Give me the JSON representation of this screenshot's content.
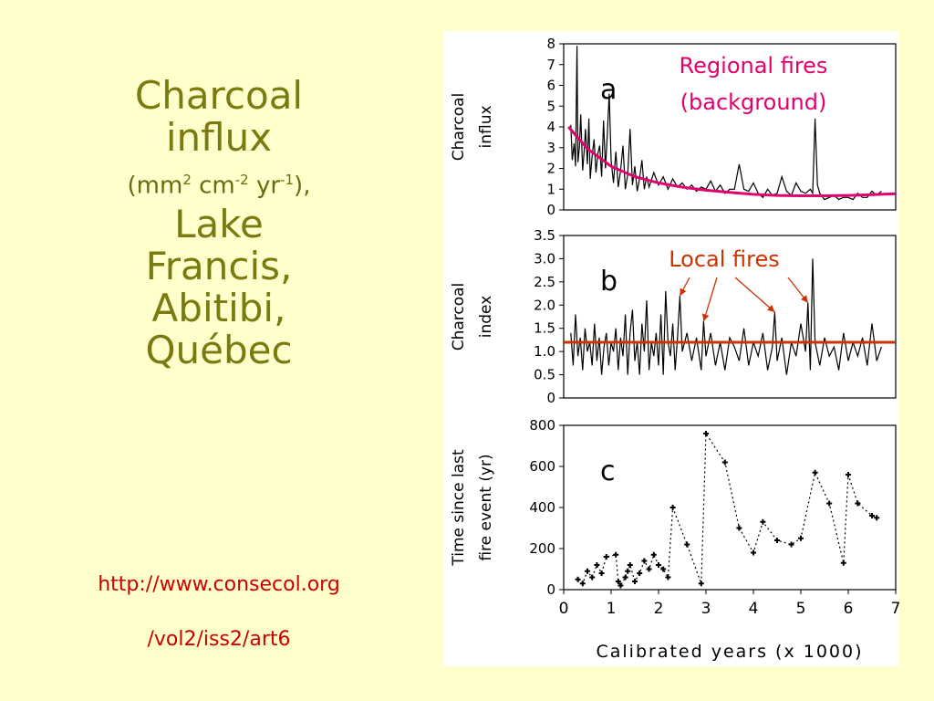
{
  "slide": {
    "title_line1": "Charcoal",
    "title_line2": "influx",
    "units_pre": "(mm",
    "units_sup1": "2",
    "units_mid1": " cm",
    "units_sup2": "-2",
    "units_mid2": " yr",
    "units_sup3": "-1",
    "units_post": "),",
    "place_line1": "Lake",
    "place_line2": "Francis,",
    "place_line3": "Abitibi,",
    "place_line4": "Québec",
    "link_line1": "http://www.consecol.org",
    "link_line2": "/vol2/iss2/art6"
  },
  "chart_data": [
    {
      "type": "line",
      "panel_letter": "a",
      "ylabel_line1": "Charcoal",
      "ylabel_line2": "influx",
      "annotation_line1": "Regional fires",
      "annotation_line2": "(background)",
      "ylim": [
        0,
        8
      ],
      "xlim": [
        0,
        7
      ],
      "yticks": [
        "0",
        "1",
        "2",
        "3",
        "4",
        "5",
        "6",
        "7",
        "8"
      ],
      "background_color": "#e0006e",
      "series": [
        {
          "x": [
            0.15,
            0.18,
            0.22,
            0.25,
            0.28,
            0.3,
            0.33,
            0.36,
            0.4,
            0.43,
            0.46,
            0.5,
            0.53,
            0.56,
            0.6,
            0.64,
            0.68,
            0.72,
            0.76,
            0.8,
            0.84,
            0.88,
            0.92,
            0.96,
            1.0,
            1.05,
            1.1,
            1.15,
            1.2,
            1.25,
            1.3,
            1.35,
            1.4,
            1.45,
            1.5,
            1.55,
            1.6,
            1.65,
            1.7,
            1.75,
            1.8,
            1.9,
            2.0,
            2.1,
            2.2,
            2.3,
            2.4,
            2.5,
            2.6,
            2.7,
            2.8,
            2.9,
            3.0,
            3.1,
            3.2,
            3.3,
            3.4,
            3.5,
            3.6,
            3.7,
            3.8,
            3.9,
            4.0,
            4.1,
            4.2,
            4.3,
            4.4,
            4.5,
            4.6,
            4.7,
            4.8,
            4.9,
            5.0,
            5.1,
            5.2,
            5.25,
            5.3,
            5.35,
            5.4,
            5.5,
            5.6,
            5.7,
            5.8,
            5.9,
            6.0,
            6.1,
            6.2,
            6.3,
            6.4,
            6.5,
            6.6,
            6.7
          ],
          "y": [
            4.1,
            2.4,
            3.2,
            2.1,
            7.9,
            2.3,
            3.0,
            4.6,
            1.9,
            2.8,
            3.9,
            2.2,
            4.4,
            1.5,
            2.6,
            3.4,
            1.8,
            2.7,
            3.1,
            1.6,
            4.3,
            2.0,
            3.6,
            5.6,
            2.4,
            1.3,
            2.8,
            1.1,
            1.9,
            3.1,
            1.0,
            1.7,
            3.9,
            1.2,
            2.1,
            0.9,
            1.5,
            2.4,
            1.0,
            1.6,
            1.1,
            1.8,
            1.2,
            1.6,
            1.0,
            1.5,
            1.1,
            1.3,
            1.0,
            1.2,
            0.9,
            1.1,
            1.0,
            1.4,
            0.9,
            1.2,
            0.8,
            1.0,
            1.0,
            2.2,
            1.0,
            0.9,
            1.3,
            0.8,
            0.6,
            1.0,
            0.7,
            0.8,
            1.6,
            0.9,
            0.7,
            1.3,
            0.9,
            0.8,
            1.0,
            0.8,
            4.4,
            1.2,
            0.8,
            0.5,
            0.6,
            0.7,
            0.5,
            0.6,
            0.6,
            0.5,
            0.8,
            0.6,
            0.6,
            0.9,
            0.7,
            0.9
          ]
        }
      ],
      "background_curve": {
        "x": [
          0.1,
          0.5,
          1.0,
          1.5,
          2.0,
          2.5,
          3.0,
          3.5,
          4.0,
          4.5,
          5.0,
          5.5,
          6.0,
          6.5,
          7.0
        ],
        "y": [
          4.0,
          2.95,
          2.1,
          1.6,
          1.3,
          1.1,
          0.95,
          0.85,
          0.75,
          0.7,
          0.68,
          0.68,
          0.7,
          0.74,
          0.78
        ]
      }
    },
    {
      "type": "line",
      "panel_letter": "b",
      "ylabel_line1": "Charcoal",
      "ylabel_line2": "index",
      "annotation_line1": "Local fires",
      "ylim": [
        0,
        3.5
      ],
      "xlim": [
        0,
        7
      ],
      "yticks": [
        "0",
        "0.5",
        "1.0",
        "1.5",
        "2.0",
        "2.5",
        "3.0",
        "3.5"
      ],
      "threshold": 1.2,
      "threshold_color": "#cc3300",
      "arrow_targets": [
        {
          "x": 2.45,
          "y": 2.2
        },
        {
          "x": 2.95,
          "y": 1.65
        },
        {
          "x": 4.45,
          "y": 1.85
        },
        {
          "x": 5.15,
          "y": 2.05
        }
      ],
      "series": [
        {
          "x": [
            0.15,
            0.2,
            0.25,
            0.3,
            0.35,
            0.4,
            0.45,
            0.5,
            0.55,
            0.6,
            0.65,
            0.7,
            0.75,
            0.8,
            0.85,
            0.9,
            0.95,
            1.0,
            1.05,
            1.1,
            1.15,
            1.2,
            1.25,
            1.3,
            1.35,
            1.4,
            1.45,
            1.5,
            1.55,
            1.6,
            1.65,
            1.7,
            1.75,
            1.8,
            1.85,
            1.9,
            1.95,
            2.0,
            2.05,
            2.1,
            2.15,
            2.2,
            2.25,
            2.3,
            2.35,
            2.4,
            2.45,
            2.5,
            2.6,
            2.7,
            2.8,
            2.9,
            2.95,
            3.0,
            3.1,
            3.2,
            3.3,
            3.4,
            3.5,
            3.6,
            3.7,
            3.8,
            3.9,
            4.0,
            4.1,
            4.2,
            4.3,
            4.4,
            4.45,
            4.5,
            4.6,
            4.7,
            4.8,
            4.9,
            5.0,
            5.1,
            5.15,
            5.2,
            5.25,
            5.3,
            5.4,
            5.5,
            5.6,
            5.7,
            5.8,
            5.9,
            6.0,
            6.1,
            6.2,
            6.3,
            6.4,
            6.5,
            6.6,
            6.7
          ],
          "y": [
            1.4,
            0.7,
            1.8,
            0.9,
            1.3,
            0.6,
            1.5,
            1.0,
            1.2,
            0.7,
            1.6,
            0.8,
            1.3,
            0.5,
            1.1,
            1.4,
            0.7,
            1.2,
            1.0,
            1.5,
            0.6,
            1.3,
            0.9,
            1.8,
            0.5,
            1.4,
            1.9,
            0.8,
            1.2,
            0.5,
            1.6,
            1.0,
            2.1,
            0.6,
            1.2,
            0.9,
            1.4,
            0.7,
            1.8,
            0.5,
            2.3,
            1.2,
            0.9,
            1.6,
            0.6,
            1.3,
            2.2,
            1.0,
            1.4,
            0.8,
            1.3,
            0.6,
            1.65,
            0.9,
            1.4,
            0.7,
            1.2,
            0.6,
            1.3,
            1.1,
            0.8,
            1.5,
            0.7,
            1.2,
            0.9,
            1.4,
            0.6,
            1.1,
            1.85,
            0.8,
            1.3,
            0.5,
            1.2,
            0.9,
            1.6,
            1.0,
            2.05,
            0.6,
            3.0,
            1.2,
            0.7,
            1.3,
            0.9,
            1.1,
            0.6,
            1.4,
            0.8,
            1.2,
            0.9,
            1.3,
            0.7,
            1.6,
            0.8,
            1.1
          ]
        }
      ]
    },
    {
      "type": "scatter",
      "panel_letter": "c",
      "ylabel_line1": "Time since last",
      "ylabel_line2": "fire event (yr)",
      "xlabel": "Calibrated years (x 1000)",
      "ylim": [
        0,
        800
      ],
      "xlim": [
        0,
        7
      ],
      "yticks": [
        "0",
        "200",
        "400",
        "600",
        "800"
      ],
      "xticks": [
        "0",
        "1",
        "2",
        "3",
        "4",
        "5",
        "6",
        "7"
      ],
      "series": [
        {
          "x": [
            0.3,
            0.4,
            0.5,
            0.6,
            0.7,
            0.8,
            0.9,
            1.1,
            1.15,
            1.2,
            1.3,
            1.35,
            1.4,
            1.5,
            1.6,
            1.7,
            1.8,
            1.9,
            2.0,
            2.1,
            2.2,
            2.3,
            2.6,
            2.9,
            3.0,
            3.4,
            3.7,
            4.0,
            4.2,
            4.5,
            4.8,
            5.0,
            5.3,
            5.6,
            5.9,
            6.0,
            6.2,
            6.5,
            6.6
          ],
          "y": [
            50,
            30,
            90,
            60,
            120,
            80,
            160,
            170,
            40,
            20,
            60,
            90,
            120,
            40,
            80,
            140,
            100,
            170,
            120,
            100,
            60,
            400,
            220,
            30,
            760,
            620,
            300,
            180,
            330,
            240,
            220,
            250,
            570,
            420,
            130,
            560,
            420,
            360,
            350
          ]
        }
      ]
    }
  ]
}
